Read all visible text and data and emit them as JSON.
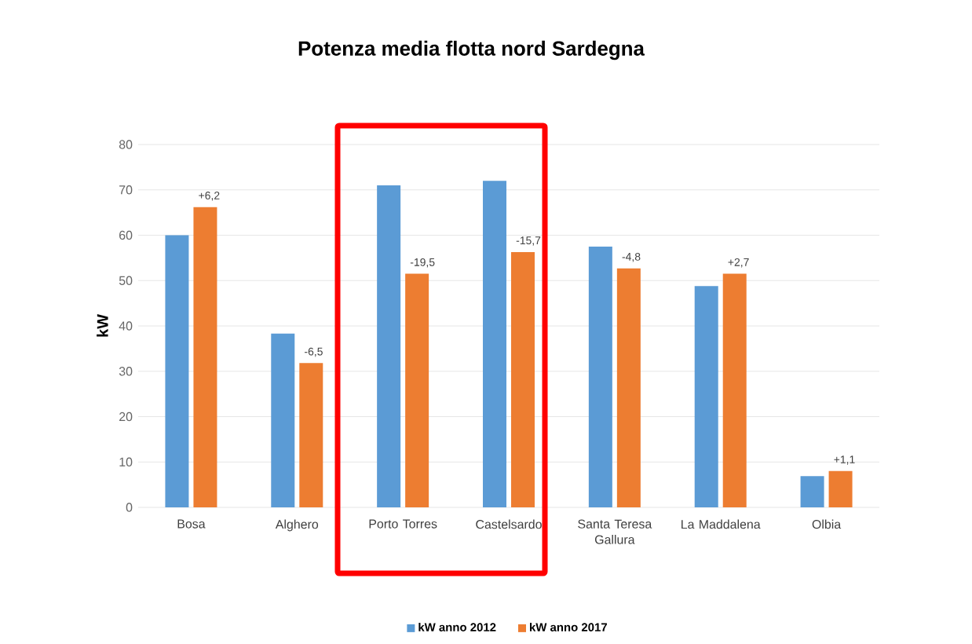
{
  "chart_data": {
    "type": "bar",
    "title": "Potenza media flotta nord Sardegna",
    "ylabel": "kW",
    "categories": [
      "Bosa",
      "Alghero",
      "Porto Torres",
      "Castelsardo",
      "Santa Teresa Gallura",
      "La Maddalena",
      "Olbia"
    ],
    "series": [
      {
        "name": "kW anno  2012",
        "color": "#5b9bd5",
        "values": [
          60,
          38.3,
          71,
          72,
          57.5,
          48.8,
          6.9
        ]
      },
      {
        "name": "kW  anno 2017",
        "color": "#ed7d31",
        "values": [
          66.2,
          31.8,
          51.5,
          56.3,
          52.7,
          51.5,
          8
        ]
      }
    ],
    "ylim": [
      0,
      80
    ],
    "yticks": [
      0,
      10,
      20,
      30,
      40,
      50,
      60,
      70,
      80
    ],
    "grid": "y",
    "legend": "bottom",
    "annotations": [
      {
        "text": "+6,2",
        "x": "Bosa",
        "y": 66.2
      },
      {
        "text": "-6,5",
        "x": "Alghero",
        "y": 31.8
      },
      {
        "text": "-19,5",
        "x": "Porto Torres",
        "y": 51.5
      },
      {
        "text": "-15,7",
        "x": "Castelsardo",
        "y": 56.3
      },
      {
        "text": "-4,8",
        "x": "Santa Teresa Gallura",
        "y": 52.7
      },
      {
        "text": "+2,7",
        "x": "La Maddalena",
        "y": 51.5
      },
      {
        "text": "+1,1",
        "x": "Olbia",
        "y": 8
      }
    ]
  }
}
